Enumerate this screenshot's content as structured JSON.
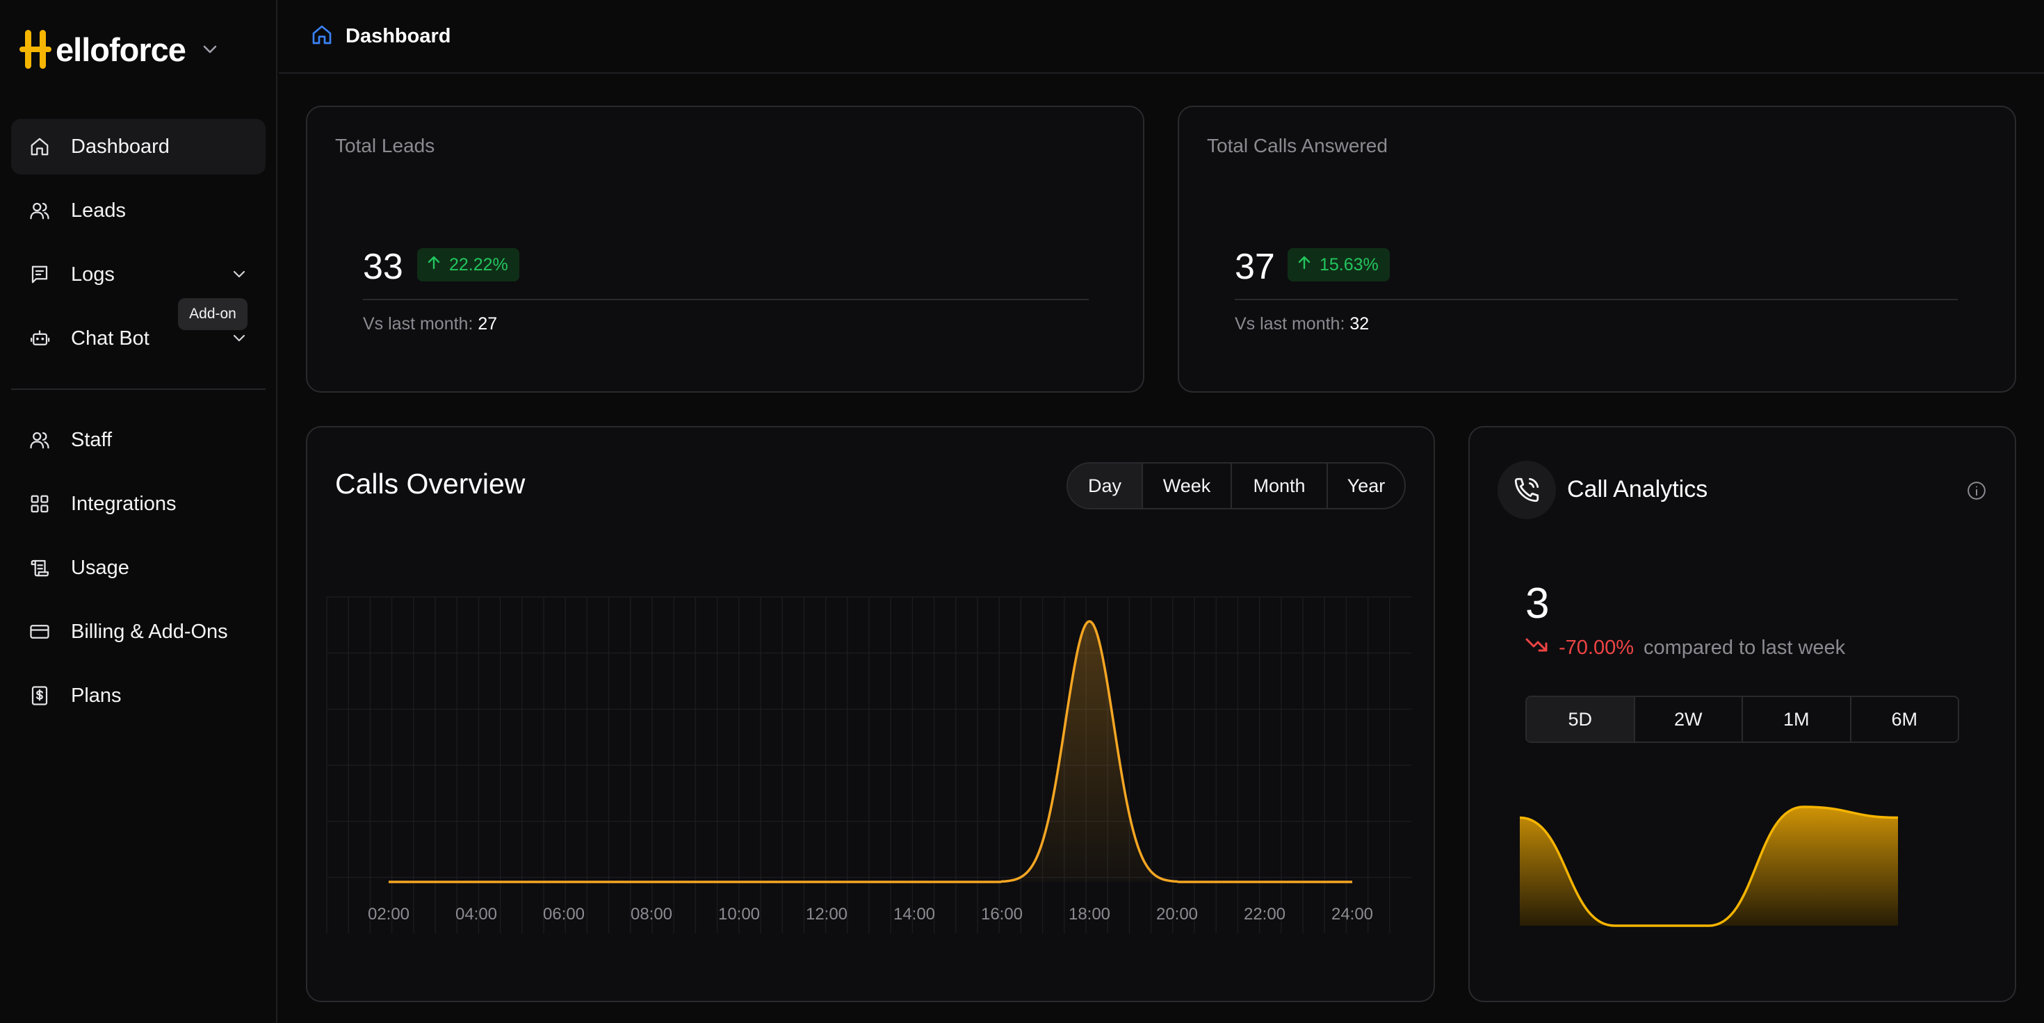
{
  "brand": {
    "name": "elloforce",
    "icon": "helloforce-logo"
  },
  "sidebar": {
    "items": [
      {
        "label": "Dashboard",
        "icon": "home-icon",
        "active": true
      },
      {
        "label": "Leads",
        "icon": "users-icon"
      },
      {
        "label": "Logs",
        "icon": "list-icon",
        "expandable": true
      },
      {
        "label": "Chat Bot",
        "icon": "bot-icon",
        "expandable": true
      },
      {
        "label": "Staff",
        "icon": "users-icon"
      },
      {
        "label": "Integrations",
        "icon": "grid-icon"
      },
      {
        "label": "Usage",
        "icon": "scroll-icon"
      },
      {
        "label": "Billing & Add-Ons",
        "icon": "credit-card-icon"
      },
      {
        "label": "Plans",
        "icon": "dollar-icon"
      }
    ],
    "tooltip": "Add-on"
  },
  "header": {
    "title": "Dashboard",
    "icon": "home-icon"
  },
  "total_leads": {
    "label": "Total Leads",
    "value": "33",
    "change": "22.22%",
    "vs_label": "Vs last month: ",
    "vs_value": "27"
  },
  "total_calls": {
    "label": "Total Calls Answered",
    "value": "37",
    "change": "15.63%",
    "vs_label": "Vs last month: ",
    "vs_value": "32"
  },
  "calls_overview": {
    "title": "Calls Overview",
    "ranges": [
      "Day",
      "Week",
      "Month",
      "Year"
    ],
    "selected_range": "Day"
  },
  "call_analytics": {
    "title": "Call Analytics",
    "value": "3",
    "change": "-70.00%",
    "compare_text": "compared to last week",
    "ranges": [
      "5D",
      "2W",
      "1M",
      "6M"
    ],
    "selected_range": "5D"
  },
  "colors": {
    "accent": "#f5a623",
    "positive": "#22c55e",
    "negative": "#ef4444",
    "brand_yellow": "#f6b500"
  },
  "chart_data": [
    {
      "type": "area",
      "x": [
        "02:00",
        "04:00",
        "06:00",
        "08:00",
        "10:00",
        "12:00",
        "14:00",
        "16:00",
        "18:00",
        "20:00",
        "22:00",
        "24:00"
      ],
      "values": [
        0,
        0,
        0,
        0,
        0,
        0,
        0,
        0,
        3,
        0,
        0,
        0
      ],
      "ylim": [
        0,
        3.2
      ],
      "grid": true,
      "title": "",
      "xlabel": "",
      "ylabel": ""
    },
    {
      "type": "area",
      "x": [
        "1",
        "2",
        "3",
        "4",
        "5"
      ],
      "values": [
        1,
        0,
        0,
        1.1,
        1
      ],
      "ylim": [
        0,
        1.2
      ],
      "grid": false,
      "title": "",
      "xlabel": "",
      "ylabel": ""
    }
  ]
}
